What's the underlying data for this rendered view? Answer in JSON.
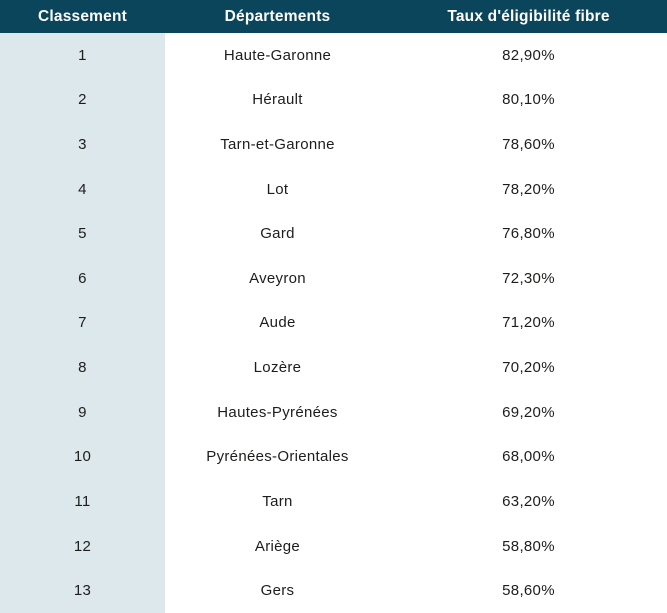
{
  "colors": {
    "header_bg": "#0A455C",
    "rank_col_bg": "#DCE8EC",
    "header_text": "#FFFFFF",
    "body_text": "#1D1D1B",
    "row_bg": "#FFFFFF"
  },
  "table": {
    "columns": [
      {
        "label": "Classement"
      },
      {
        "label": "Départements"
      },
      {
        "label": "Taux d'éligibilité fibre"
      }
    ],
    "rows": [
      {
        "rank": "1",
        "department": "Haute-Garonne",
        "rate": "82,90%"
      },
      {
        "rank": "2",
        "department": "Hérault",
        "rate": "80,10%"
      },
      {
        "rank": "3",
        "department": "Tarn-et-Garonne",
        "rate": "78,60%"
      },
      {
        "rank": "4",
        "department": "Lot",
        "rate": "78,20%"
      },
      {
        "rank": "5",
        "department": "Gard",
        "rate": "76,80%"
      },
      {
        "rank": "6",
        "department": "Aveyron",
        "rate": "72,30%"
      },
      {
        "rank": "7",
        "department": "Aude",
        "rate": "71,20%"
      },
      {
        "rank": "8",
        "department": "Lozère",
        "rate": "70,20%"
      },
      {
        "rank": "9",
        "department": "Hautes-Pyrénées",
        "rate": "69,20%"
      },
      {
        "rank": "10",
        "department": "Pyrénées-Orientales",
        "rate": "68,00%"
      },
      {
        "rank": "11",
        "department": "Tarn",
        "rate": "63,20%"
      },
      {
        "rank": "12",
        "department": "Ariège",
        "rate": "58,80%"
      },
      {
        "rank": "13",
        "department": "Gers",
        "rate": "58,60%"
      }
    ]
  },
  "chart_data": {
    "type": "table",
    "title": "",
    "columns": [
      "Classement",
      "Départements",
      "Taux d'éligibilité fibre"
    ],
    "rows": [
      [
        1,
        "Haute-Garonne",
        "82,90%"
      ],
      [
        2,
        "Hérault",
        "80,10%"
      ],
      [
        3,
        "Tarn-et-Garonne",
        "78,60%"
      ],
      [
        4,
        "Lot",
        "78,20%"
      ],
      [
        5,
        "Gard",
        "76,80%"
      ],
      [
        6,
        "Aveyron",
        "72,30%"
      ],
      [
        7,
        "Aude",
        "71,20%"
      ],
      [
        8,
        "Lozère",
        "70,20%"
      ],
      [
        9,
        "Hautes-Pyrénées",
        "69,20%"
      ],
      [
        10,
        "Pyrénées-Orientales",
        "68,00%"
      ],
      [
        11,
        "Tarn",
        "63,20%"
      ],
      [
        12,
        "Ariège",
        "58,80%"
      ],
      [
        13,
        "Gers",
        "58,60%"
      ]
    ],
    "rates_numeric_percent": [
      82.9,
      80.1,
      78.6,
      78.2,
      76.8,
      72.3,
      71.2,
      70.2,
      69.2,
      68.0,
      63.2,
      58.8,
      58.6
    ]
  }
}
